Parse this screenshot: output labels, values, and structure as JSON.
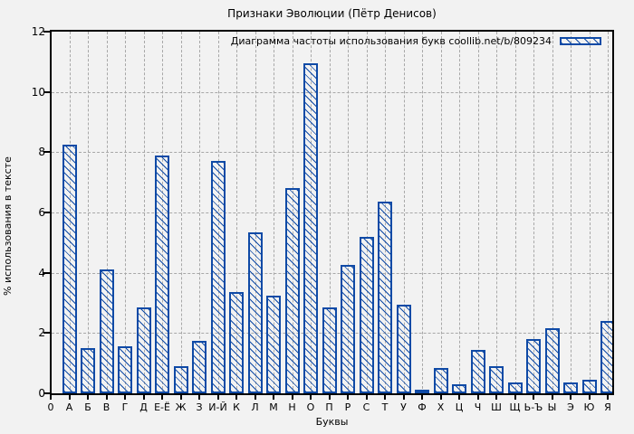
{
  "title": "Признаки Эволюции (Пётр Денисов)",
  "legend": {
    "label": "Диаграмма частоты использования букв coollib.net/b/809234"
  },
  "axes": {
    "x_label": "Буквы",
    "y_label": "% использования в тексте",
    "y_ticks": [
      0,
      2,
      4,
      6,
      8,
      10,
      12
    ],
    "x_origin_label": "0"
  },
  "colors": {
    "bar": "#0f4aa6",
    "grid": "#a8a8a8",
    "axis": "#000000",
    "background": "#f2f2f2"
  },
  "chart_data": {
    "type": "bar",
    "title": "Признаки Эволюции (Пётр Денисов)",
    "legend_entry": "Диаграмма частоты использования букв coollib.net/b/809234",
    "legend_position": "top-right",
    "xlabel": "Буквы",
    "ylabel": "% использования в тексте",
    "ylim": [
      0,
      12
    ],
    "grid": true,
    "categories": [
      "А",
      "Б",
      "В",
      "Г",
      "Д",
      "Е-Ё",
      "Ж",
      "З",
      "И-Й",
      "К",
      "Л",
      "М",
      "Н",
      "О",
      "П",
      "Р",
      "С",
      "Т",
      "У",
      "Ф",
      "Х",
      "Ц",
      "Ч",
      "Ш",
      "Щ",
      "Ь-Ъ",
      "Ы",
      "Э",
      "Ю",
      "Я"
    ],
    "values": [
      8.25,
      1.5,
      4.1,
      1.55,
      2.85,
      7.9,
      0.9,
      1.75,
      7.7,
      3.35,
      5.35,
      3.25,
      6.8,
      10.95,
      2.85,
      4.25,
      5.2,
      6.35,
      2.95,
      0.1,
      0.85,
      0.3,
      1.45,
      0.9,
      0.35,
      1.8,
      2.15,
      0.35,
      0.45,
      2.4
    ]
  }
}
